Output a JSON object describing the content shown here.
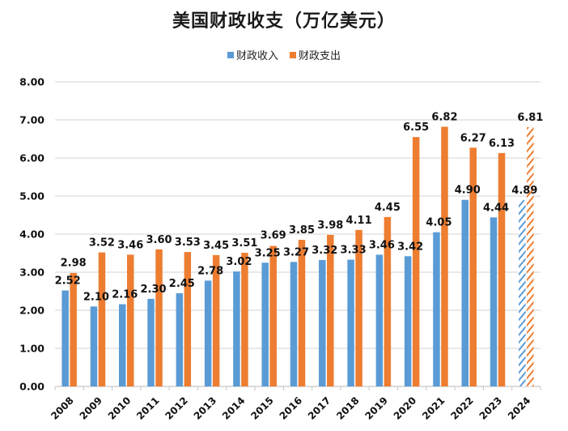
{
  "chart_data": {
    "type": "bar",
    "title": "美国财政收支（万亿美元）",
    "xlabel": "",
    "ylabel": "",
    "ylim": [
      0,
      8
    ],
    "yticks": [
      "0.00",
      "1.00",
      "2.00",
      "3.00",
      "4.00",
      "5.00",
      "6.00",
      "7.00",
      "8.00"
    ],
    "grid": true,
    "legend_position": "top-center",
    "categories": [
      "2008",
      "2009",
      "2010",
      "2011",
      "2012",
      "2013",
      "2014",
      "2015",
      "2016",
      "2017",
      "2018",
      "2019",
      "2020",
      "2021",
      "2022",
      "2023",
      "2024"
    ],
    "series": [
      {
        "name": "财政收入",
        "color": "#5B9BD5",
        "values": [
          2.52,
          2.1,
          2.16,
          2.3,
          2.45,
          2.78,
          3.02,
          3.25,
          3.27,
          3.32,
          3.33,
          3.46,
          3.42,
          4.05,
          4.9,
          4.44,
          4.89
        ],
        "labels": [
          "2.52",
          "2.10",
          "2.16",
          "2.30",
          "2.45",
          "2.78",
          "3.02",
          "3.25",
          "3.27",
          "3.32",
          "3.33",
          "3.46",
          "3.42",
          "4.05",
          "4.90",
          "4.44",
          "4.89"
        ]
      },
      {
        "name": "财政支出",
        "color": "#ED7D31",
        "values": [
          2.98,
          3.52,
          3.46,
          3.6,
          3.53,
          3.45,
          3.51,
          3.69,
          3.85,
          3.98,
          4.11,
          4.45,
          6.55,
          6.82,
          6.27,
          6.13,
          6.81
        ],
        "labels": [
          "2.98",
          "3.52",
          "3.46",
          "3.60",
          "3.53",
          "3.45",
          "3.51",
          "3.69",
          "3.85",
          "3.98",
          "4.11",
          "4.45",
          "6.55",
          "6.82",
          "6.27",
          "6.13",
          "6.81"
        ]
      }
    ],
    "projected_categories": [
      "2024"
    ],
    "projected_style": "hatched"
  }
}
